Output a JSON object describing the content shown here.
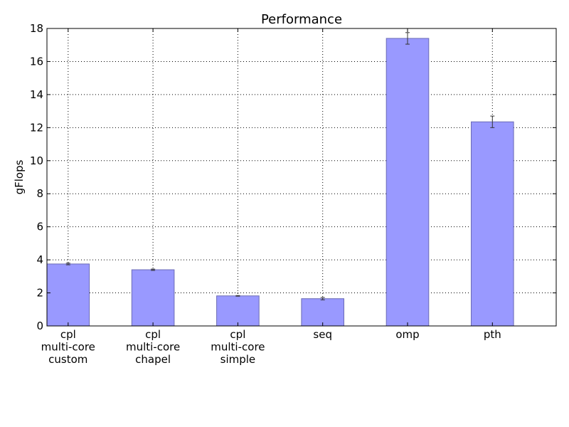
{
  "chart_data": {
    "type": "bar",
    "title": "Performance",
    "xlabel": "",
    "ylabel": "gFlops",
    "ylim": [
      0,
      18
    ],
    "yticks": [
      0,
      2,
      4,
      6,
      8,
      10,
      12,
      14,
      16,
      18
    ],
    "grid": true,
    "categories": [
      [
        "cpl",
        "multi-core",
        "custom"
      ],
      [
        "cpl",
        "multi-core",
        "chapel"
      ],
      [
        "cpl",
        "multi-core",
        "simple"
      ],
      [
        "seq"
      ],
      [
        "omp"
      ],
      [
        "pth"
      ]
    ],
    "values": [
      3.75,
      3.4,
      1.82,
      1.65,
      17.4,
      12.35
    ],
    "errors": [
      0.05,
      0.04,
      0.02,
      0.07,
      0.35,
      0.35
    ],
    "colors": {
      "bar_fill": "#9999ff",
      "bar_edge": "#6b6bb5"
    }
  }
}
